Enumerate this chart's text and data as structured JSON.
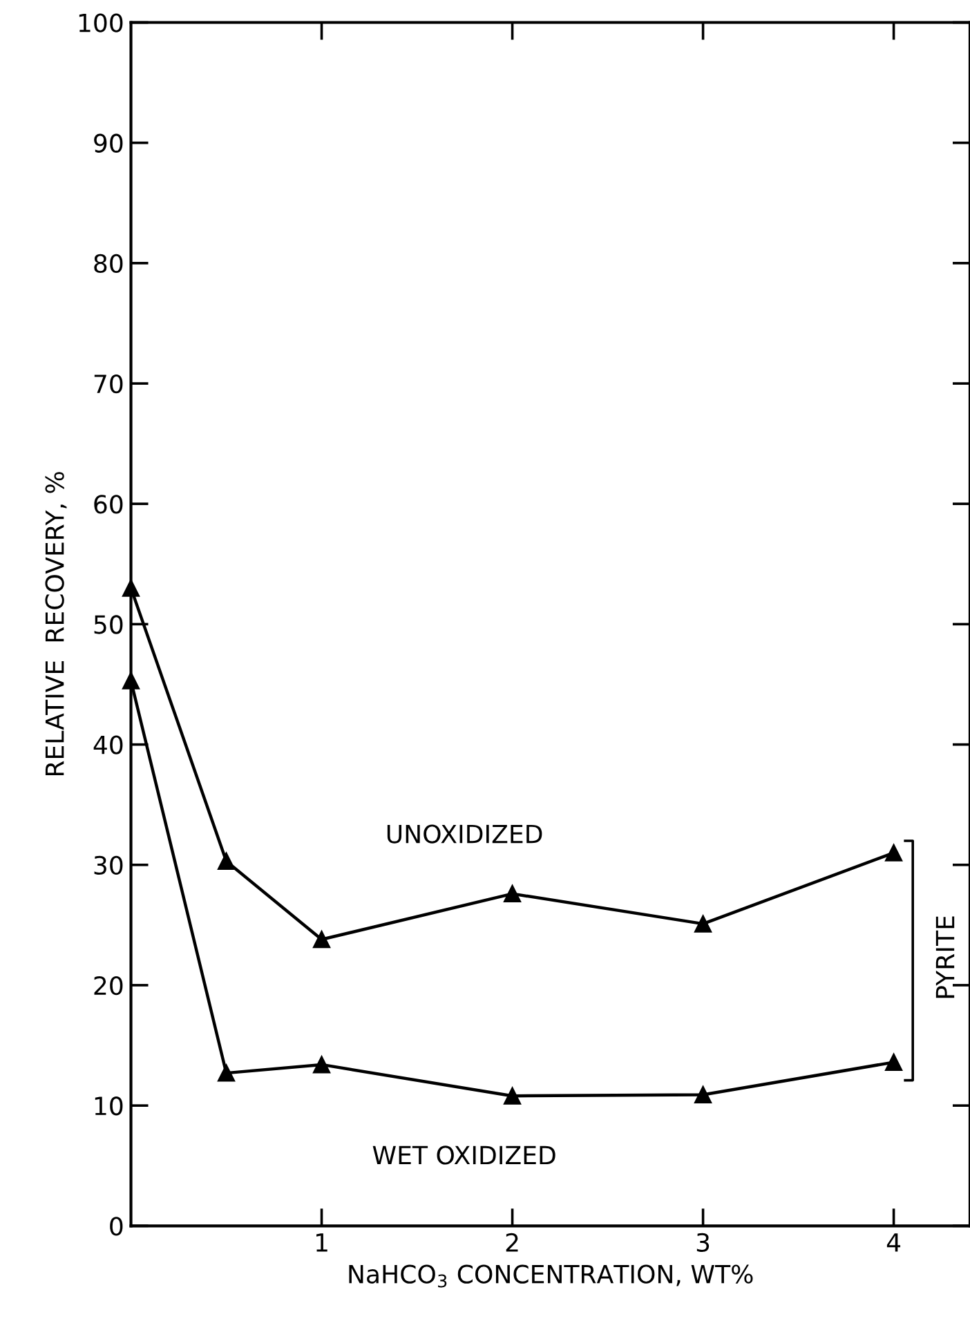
{
  "chart_data": {
    "type": "line",
    "xlabel": "NaHCO$_{3}$ CONCENTRATION, WT%",
    "ylabel": "RELATIVE  RECOVERY, %",
    "x": [
      0,
      0.5,
      1,
      2,
      3,
      4
    ],
    "series": [
      {
        "name": "UNOXIDIZED",
        "color": "#000000",
        "values": [
          53,
          30.3,
          23.8,
          27.6,
          25.1,
          31
        ]
      },
      {
        "name": "WET OXIDIZED",
        "color": "#000000",
        "values": [
          45.3,
          12.7,
          13.4,
          10.8,
          10.9,
          13.6
        ]
      }
    ],
    "annotations": [
      "PYRITE"
    ],
    "xlim": [
      0,
      4.4
    ],
    "xticks": [
      1,
      2,
      3,
      4
    ],
    "ylim": [
      0,
      100
    ],
    "yticks": [
      0,
      10,
      20,
      30,
      40,
      50,
      60,
      70,
      80,
      90,
      100
    ],
    "grid": false,
    "legend": false,
    "marker": "triangle",
    "line_style": "solid"
  }
}
